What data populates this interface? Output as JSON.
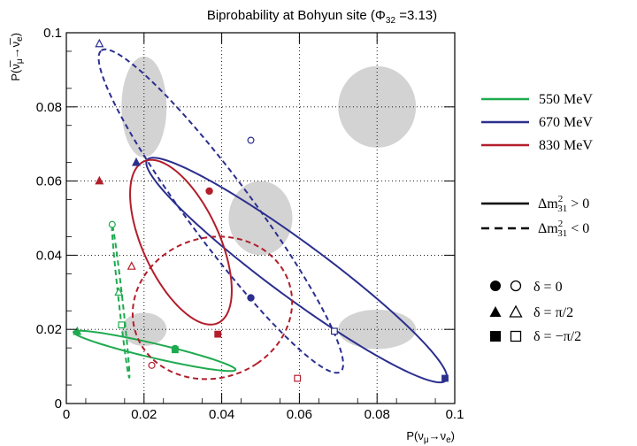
{
  "chart_data": {
    "type": "line",
    "title": "Biprobability at Bohyun site (Φ",
    "title_sub": "32",
    "title_tail": " =3.13)",
    "xlabel": "P(ν",
    "xlabel_sub1": "μ",
    "xlabel_mid": "→ν",
    "xlabel_sub2": "e",
    "xlabel_end": ")",
    "ylabel": "P(ν̅",
    "ylabel_sub1": "μ",
    "ylabel_mid": "→ν̅",
    "ylabel_sub2": "e",
    "ylabel_end": ")",
    "xlim": [
      0,
      0.1
    ],
    "ylim": [
      0,
      0.1
    ],
    "grid": true,
    "grid_style": "dotted",
    "x_ticks": [
      {
        "v": 0,
        "label": "0"
      },
      {
        "v": 0.02,
        "label": "0.02"
      },
      {
        "v": 0.04,
        "label": "0.04"
      },
      {
        "v": 0.06,
        "label": "0.06"
      },
      {
        "v": 0.08,
        "label": "0.08"
      },
      {
        "v": 0.1,
        "label": "0.1"
      }
    ],
    "y_ticks": [
      {
        "v": 0,
        "label": "0"
      },
      {
        "v": 0.02,
        "label": "0.02"
      },
      {
        "v": 0.04,
        "label": "0.04"
      },
      {
        "v": 0.06,
        "label": "0.06"
      },
      {
        "v": 0.08,
        "label": "0.08"
      },
      {
        "v": 0.1,
        "label": "0.1"
      }
    ],
    "blobs": [
      {
        "cx": 0.02,
        "cy": 0.08,
        "rx": 0.0058,
        "ry": 0.0136
      },
      {
        "cx": 0.08,
        "cy": 0.08,
        "rx": 0.01,
        "ry": 0.011
      },
      {
        "cx": 0.05,
        "cy": 0.05,
        "rx": 0.0082,
        "ry": 0.01
      },
      {
        "cx": 0.02,
        "cy": 0.02,
        "rx": 0.0058,
        "ry": 0.0045
      },
      {
        "cx": 0.08,
        "cy": 0.02,
        "rx": 0.01,
        "ry": 0.0053
      }
    ],
    "series": [
      {
        "name": "550 MeV",
        "color": "#1faa4f",
        "normal": {
          "c": [
            0.0227,
            0.0142
          ],
          "a": [
            0.0208,
            -0.0052
          ],
          "b": [
            0.0016,
            0.0016
          ]
        },
        "inverted": {
          "c": [
            0.014,
            0.0275
          ],
          "a": [
            -0.0022,
            0.0205
          ],
          "b": [
            0.0005,
            0.0
          ]
        }
      },
      {
        "name": "670 MeV",
        "color": "#2b2f8e",
        "normal": {
          "c": [
            0.0593,
            0.036
          ],
          "a": [
            0.0385,
            -0.0297
          ],
          "b": [
            0.0041,
            0.006
          ]
        },
        "inverted": {
          "c": [
            0.0398,
            0.0519
          ],
          "a": [
            -0.0308,
            0.0433
          ],
          "b": [
            0.0065,
            0.0053
          ]
        }
      },
      {
        "name": "830 MeV",
        "color": "#b21e2b",
        "normal": {
          "c": [
            0.0295,
            0.0435
          ],
          "a": [
            -0.009,
            0.022
          ],
          "b": [
            0.0095,
            0.003
          ]
        },
        "inverted": {
          "c": [
            0.0376,
            0.0258
          ],
          "a": [
            0.0115,
            -0.015
          ],
          "b": [
            0.017,
            0.012
          ]
        }
      }
    ],
    "markers": [
      {
        "series": 0,
        "hier": "normal",
        "delta": "0",
        "x": 0.028,
        "y": 0.0148
      },
      {
        "series": 0,
        "hier": "normal",
        "delta": "pi/2",
        "x": 0.0028,
        "y": 0.0194
      },
      {
        "series": 0,
        "hier": "normal",
        "delta": "-pi/2",
        "x": 0.028,
        "y": 0.0145
      },
      {
        "series": 0,
        "hier": "inverted",
        "delta": "0",
        "x": 0.0118,
        "y": 0.0483
      },
      {
        "series": 0,
        "hier": "inverted",
        "delta": "pi/2",
        "x": 0.0135,
        "y": 0.03
      },
      {
        "series": 0,
        "hier": "inverted",
        "delta": "-pi/2",
        "x": 0.0142,
        "y": 0.0212
      },
      {
        "series": 1,
        "hier": "normal",
        "delta": "0",
        "x": 0.0475,
        "y": 0.0285
      },
      {
        "series": 1,
        "hier": "normal",
        "delta": "pi/2",
        "x": 0.018,
        "y": 0.065
      },
      {
        "series": 1,
        "hier": "normal",
        "delta": "-pi/2",
        "x": 0.0975,
        "y": 0.0068
      },
      {
        "series": 1,
        "hier": "inverted",
        "delta": "0",
        "x": 0.0475,
        "y": 0.071
      },
      {
        "series": 1,
        "hier": "inverted",
        "delta": "pi/2",
        "x": 0.0085,
        "y": 0.097
      },
      {
        "series": 1,
        "hier": "inverted",
        "delta": "-pi/2",
        "x": 0.069,
        "y": 0.0195
      },
      {
        "series": 2,
        "hier": "normal",
        "delta": "0",
        "x": 0.0368,
        "y": 0.0573
      },
      {
        "series": 2,
        "hier": "normal",
        "delta": "pi/2",
        "x": 0.0085,
        "y": 0.06
      },
      {
        "series": 2,
        "hier": "normal",
        "delta": "-pi/2",
        "x": 0.039,
        "y": 0.0187
      },
      {
        "series": 2,
        "hier": "inverted",
        "delta": "0",
        "x": 0.022,
        "y": 0.0103
      },
      {
        "series": 2,
        "hier": "inverted",
        "delta": "pi/2",
        "x": 0.0168,
        "y": 0.037
      },
      {
        "series": 2,
        "hier": "inverted",
        "delta": "-pi/2",
        "x": 0.0595,
        "y": 0.0068
      }
    ],
    "legend": {
      "placement": "right",
      "energies": [
        "550 MeV",
        "670 MeV",
        "830 MeV"
      ],
      "hierarchy": [
        {
          "style": "solid",
          "pre": "Δm",
          "sup": "2",
          "sub": "31",
          "post": " > 0"
        },
        {
          "style": "dashed",
          "pre": "Δm",
          "sup": "2",
          "sub": "31",
          "post": " < 0"
        }
      ],
      "deltas": [
        {
          "marker": "circle",
          "text": "δ = 0"
        },
        {
          "marker": "triangle",
          "text": "δ = π/2"
        },
        {
          "marker": "square",
          "text": "δ = −π/2"
        }
      ]
    }
  }
}
